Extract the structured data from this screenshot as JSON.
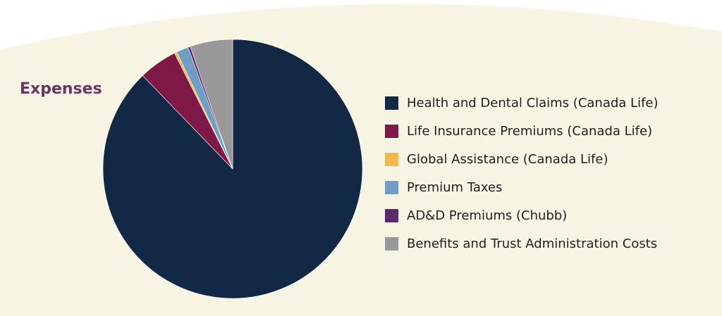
{
  "colors": {
    "background": "#f8f4e4",
    "page": "#ffffff",
    "title": "#6b3566"
  },
  "chart_data": {
    "type": "pie",
    "title": "Expenses",
    "series": [
      {
        "name": "Health and Dental Claims (Canada Life)",
        "value": 87.8,
        "color": "#132844"
      },
      {
        "name": "Life Insurance Premiums (Canada Life)",
        "value": 4.8,
        "color": "#7e1846"
      },
      {
        "name": "Global Assistance (Canada Life)",
        "value": 0.3,
        "color": "#f2b84b"
      },
      {
        "name": "Premium Taxes",
        "value": 1.5,
        "color": "#6f9dc4"
      },
      {
        "name": "AD&D Premiums (Chubb)",
        "value": 0.3,
        "color": "#5b2b6b"
      },
      {
        "name": "Benefits and Trust Administration Costs",
        "value": 5.3,
        "color": "#98989b"
      }
    ],
    "legend_position": "right"
  }
}
